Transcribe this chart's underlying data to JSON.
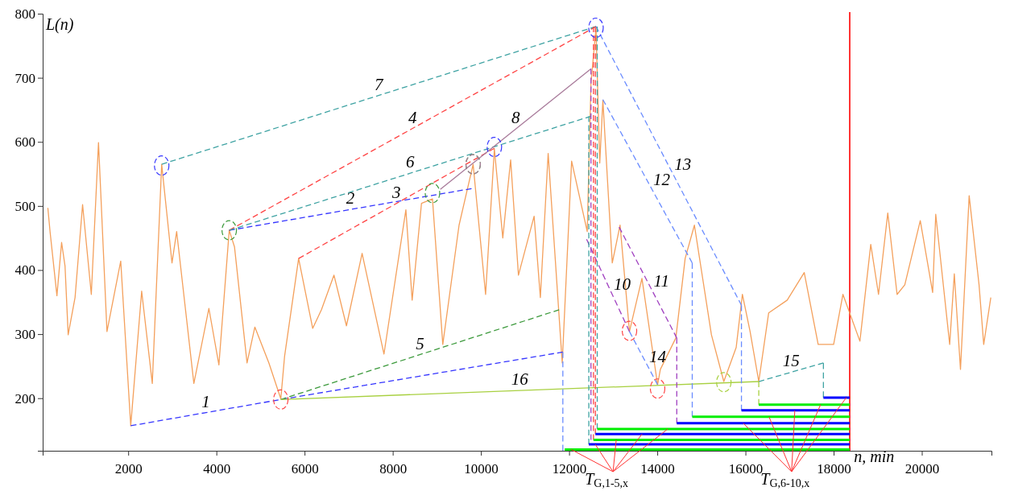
{
  "chart_data": {
    "type": "line",
    "xlabel": "n, min",
    "ylabel": "L(n)",
    "xlim": [
      60,
      21580
    ],
    "ylim": [
      118,
      800
    ],
    "xticks": [
      2000,
      4000,
      6000,
      8000,
      10000,
      12000,
      14000,
      16000,
      18000,
      20000
    ],
    "yticks": [
      200,
      300,
      400,
      500,
      600,
      700,
      800
    ],
    "grid": false,
    "marker": "none",
    "series": [
      {
        "type": "line",
        "color": "#f4a05c",
        "line_style": "solid",
        "x": [
          177,
          227,
          383,
          489,
          567,
          638,
          794,
          965,
          1163,
          1326,
          1518,
          1830,
          2057,
          2305,
          2546,
          2759,
          2993,
          3099,
          3489,
          3830,
          4057,
          4291,
          4411,
          4695,
          4872,
          5191,
          5461,
          5546,
          5865,
          6184,
          6383,
          6667,
          6950,
          7305,
          7801,
          8298,
          8440,
          8652,
          8901,
          9135,
          9504,
          9823,
          10106,
          10305,
          10496,
          10674,
          10851,
          11206,
          11348,
          11525,
          11844,
          12057,
          12411,
          12496,
          12610,
          12695,
          12766,
          12979,
          13156,
          13369,
          13652,
          14007,
          14070,
          14421,
          14632,
          14842,
          15228,
          15509,
          15789,
          15930,
          16105,
          16302,
          16526,
          16947,
          17333,
          17649,
          18000,
          18211,
          18596,
          18842,
          19018,
          19228,
          19439,
          19614,
          19965,
          20246,
          20316,
          20632,
          20737,
          20877,
          21074,
          21298,
          21404,
          21565
        ],
        "values": [
          497,
          460,
          360,
          443,
          406,
          299,
          357,
          502,
          362,
          599,
          304,
          414,
          157,
          367,
          223,
          565,
          411,
          460,
          223,
          340,
          252,
          462,
          436,
          255,
          311,
          255,
          199,
          265,
          418,
          309,
          338,
          392,
          313,
          426,
          269,
          494,
          353,
          504,
          511,
          284,
          470,
          565,
          362,
          589,
          450,
          572,
          392,
          484,
          357,
          582,
          255,
          570,
          460,
          692,
          777,
          567,
          665,
          411,
          470,
          304,
          387,
          221,
          245,
          294,
          418,
          470,
          299,
          226,
          279,
          362,
          304,
          226,
          333,
          353,
          396,
          284,
          284,
          362,
          289,
          440,
          362,
          489,
          362,
          377,
          477,
          365,
          487,
          284,
          394,
          245,
          516,
          377,
          284,
          357
        ]
      },
      {
        "type": "line",
        "color": "#3535ff",
        "line_style": "dashed",
        "name": "1",
        "x": [
          2057,
          5461,
          11858
        ],
        "values": [
          157,
          198,
          272
        ]
      },
      {
        "type": "line",
        "color": "#3535ff",
        "line_style": "dashed",
        "name": "2",
        "x": [
          4291,
          9787
        ],
        "values": [
          462,
          527
        ]
      },
      {
        "type": "line",
        "color": "#ff4545",
        "line_style": "dashed",
        "name": "3",
        "x": [
          5865,
          10306
        ],
        "values": [
          418,
          590
        ]
      },
      {
        "type": "line",
        "color": "#ff4545",
        "line_style": "dashed",
        "name": "4",
        "x": [
          4291,
          12610
        ],
        "values": [
          462,
          780
        ]
      },
      {
        "type": "line",
        "color": "#3c9a3c",
        "line_style": "dashed",
        "name": "5",
        "x": [
          5461,
          11773
        ],
        "values": [
          198,
          338
        ]
      },
      {
        "type": "line",
        "color": "#3fa3a3",
        "line_style": "dashed",
        "name": "6",
        "x": [
          4291,
          12496
        ],
        "values": [
          462,
          640
        ]
      },
      {
        "type": "line",
        "color": "#3fa3a3",
        "line_style": "dashed",
        "name": "7",
        "x": [
          2759,
          12610
        ],
        "values": [
          565,
          780
        ]
      },
      {
        "type": "line",
        "color": "#a87a9a",
        "line_style": "solid",
        "name": "8",
        "x": [
          9078,
          12496
        ],
        "values": [
          526,
          714
        ]
      },
      {
        "type": "line",
        "color": "#a040c0",
        "line_style": "dashed",
        "name": "10",
        "x": [
          12397,
          13369
        ],
        "values": [
          448,
          304
        ]
      },
      {
        "type": "line",
        "color": "#a040c0",
        "line_style": "dashed",
        "name": "11",
        "x": [
          13135,
          14442
        ],
        "values": [
          467,
          294
        ]
      },
      {
        "type": "line",
        "color": "#6a8cff",
        "line_style": "dashed",
        "name": "12",
        "x": [
          12766,
          14793
        ],
        "values": [
          666,
          411
        ]
      },
      {
        "type": "line",
        "color": "#6a8cff",
        "line_style": "dashed",
        "name": "13",
        "x": [
          12610,
          15909
        ],
        "values": [
          780,
          345
        ]
      },
      {
        "type": "line",
        "color": "#6a8cff",
        "line_style": "dashed",
        "name": "14",
        "x": [
          13369,
          14007
        ],
        "values": [
          304,
          221
        ]
      },
      {
        "type": "line",
        "color": "#3fa3a3",
        "line_style": "dashed",
        "name": "15",
        "x": [
          16302,
          17768
        ],
        "values": [
          226,
          255
        ]
      },
      {
        "type": "line",
        "color": "#a8d040",
        "line_style": "solid",
        "name": "16",
        "x": [
          5461,
          16302
        ],
        "values": [
          198,
          226
        ]
      },
      {
        "type": "line",
        "color": "#6a8cff",
        "line_style": "dashed",
        "x": [
          11858,
          11858
        ],
        "values": [
          272,
          118
        ]
      },
      {
        "type": "line",
        "color": "#3fa3a3",
        "line_style": "dashed",
        "x": [
          12447,
          12447
        ],
        "values": [
          640,
          128
        ]
      },
      {
        "type": "line",
        "color": "#a040c0",
        "line_style": "dashed",
        "x": [
          12496,
          12496
        ],
        "values": [
          714,
          135
        ]
      },
      {
        "type": "line",
        "color": "#ff4545",
        "line_style": "dashed",
        "x": [
          12553,
          12553
        ],
        "values": [
          780,
          135
        ]
      },
      {
        "type": "line",
        "color": "#ff4545",
        "line_style": "dashed",
        "x": [
          12596,
          12596
        ],
        "values": [
          780,
          144
        ]
      },
      {
        "type": "line",
        "color": "#3fa3a3",
        "line_style": "dashed",
        "x": [
          12638,
          12638
        ],
        "values": [
          780,
          152
        ]
      },
      {
        "type": "line",
        "color": "#a040c0",
        "line_style": "dashed",
        "x": [
          14442,
          14442
        ],
        "values": [
          294,
          161
        ]
      },
      {
        "type": "line",
        "color": "#6a8cff",
        "line_style": "dashed",
        "x": [
          14793,
          14793
        ],
        "values": [
          411,
          171
        ]
      },
      {
        "type": "line",
        "color": "#6a8cff",
        "line_style": "dashed",
        "x": [
          15909,
          15909
        ],
        "values": [
          345,
          181
        ]
      },
      {
        "type": "line",
        "color": "#a8d040",
        "line_style": "dashed",
        "x": [
          16302,
          16302
        ],
        "values": [
          226,
          190
        ]
      },
      {
        "type": "line",
        "color": "#3fa3a3",
        "line_style": "dashed",
        "x": [
          17768,
          17768
        ],
        "values": [
          255,
          201
        ]
      },
      {
        "type": "line",
        "color": "#00ee00",
        "line_style": "solid",
        "x": [
          11901,
          18365
        ],
        "values": [
          120,
          120
        ]
      },
      {
        "type": "line",
        "color": "#0000ff",
        "line_style": "solid",
        "x": [
          12447,
          18365
        ],
        "values": [
          128,
          128
        ]
      },
      {
        "type": "line",
        "color": "#00ee00",
        "line_style": "solid",
        "x": [
          12553,
          18365
        ],
        "values": [
          135,
          135
        ]
      },
      {
        "type": "line",
        "color": "#0000ff",
        "line_style": "solid",
        "x": [
          12596,
          18365
        ],
        "values": [
          144,
          144
        ]
      },
      {
        "type": "line",
        "color": "#00ee00",
        "line_style": "solid",
        "x": [
          12638,
          18365
        ],
        "values": [
          152,
          152
        ]
      },
      {
        "type": "line",
        "color": "#0000ff",
        "line_style": "solid",
        "x": [
          14442,
          18365
        ],
        "values": [
          161,
          161
        ]
      },
      {
        "type": "line",
        "color": "#00ee00",
        "line_style": "solid",
        "x": [
          14793,
          18365
        ],
        "values": [
          171,
          171
        ]
      },
      {
        "type": "line",
        "color": "#0000ff",
        "line_style": "solid",
        "x": [
          15909,
          18365
        ],
        "values": [
          181,
          181
        ]
      },
      {
        "type": "line",
        "color": "#00ee00",
        "line_style": "solid",
        "x": [
          16302,
          18365
        ],
        "values": [
          190,
          190
        ]
      },
      {
        "type": "line",
        "color": "#0000ff",
        "line_style": "solid",
        "x": [
          17768,
          18365
        ],
        "values": [
          201,
          201
        ]
      },
      {
        "type": "scatter",
        "color": "#3535ff",
        "marker": "circle",
        "x": [
          2759,
          10305,
          12610
        ],
        "values": [
          563,
          592,
          778
        ]
      },
      {
        "type": "scatter",
        "color": "#3c9a3c",
        "marker": "circle",
        "x": [
          4291,
          8901,
          9823
        ],
        "values": [
          462,
          520,
          565
        ]
      },
      {
        "type": "scatter",
        "color": "#ff4545",
        "marker": "circle",
        "x": [
          5461,
          13369,
          14007
        ],
        "values": [
          198,
          305,
          215
        ]
      },
      {
        "type": "scatter",
        "color": "#a87a9a",
        "marker": "circle",
        "x": [
          9823
        ],
        "values": [
          565
        ]
      },
      {
        "type": "scatter",
        "color": "#a8d040",
        "marker": "circle",
        "x": [
          15509
        ],
        "values": [
          225
        ]
      }
    ],
    "ref_lines": [
      {
        "axis": "x",
        "value": 18365,
        "color": "#ff0000",
        "line_style": "solid"
      }
    ],
    "annotations": [
      {
        "text": "T$_{G,1-5,x}$",
        "x": 12850,
        "y": 118
      },
      {
        "text": "T$_{G,6-10,x}$",
        "x": 16900,
        "y": 118
      }
    ]
  }
}
